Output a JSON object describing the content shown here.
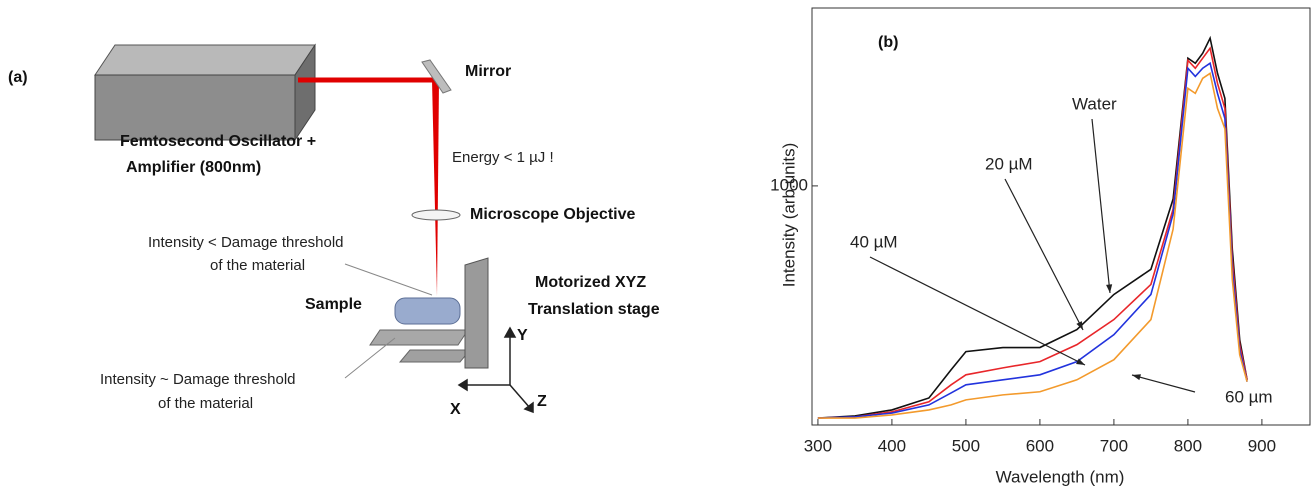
{
  "diagram": {
    "panel_label": "(a)",
    "laser": [
      "Femtosecond Oscillator +",
      "Amplifier (800nm)"
    ],
    "mirror": "Mirror",
    "energy": "Energy < 1 µJ !",
    "objective": "Microscope Objective",
    "surface_note": [
      "Intensity < Damage threshold",
      "of the material"
    ],
    "sample": "Sample",
    "stage": [
      "Motorized XYZ",
      "Translation stage"
    ],
    "bulk_note": [
      "Intensity ~ Damage threshold",
      "of the material"
    ],
    "axes": [
      "X",
      "Y",
      "Z"
    ]
  },
  "chart_data": {
    "type": "line",
    "panel_label": "(b)",
    "x_label": "Wavelength (nm)",
    "y_label": "Intensity (arb.units)",
    "x": [
      300,
      350,
      400,
      450,
      480,
      500,
      550,
      600,
      650,
      700,
      750,
      780,
      800,
      810,
      820,
      830,
      840,
      850,
      860,
      870,
      880
    ],
    "series": [
      {
        "name": "Water",
        "color": "#111111",
        "values": [
          29,
          38,
          63,
          113,
          231,
          307,
          324,
          324,
          399,
          546,
          651,
          945,
          1534,
          1513,
          1555,
          1618,
          1471,
          1366,
          735,
          357,
          189
        ]
      },
      {
        "name": "20 µM",
        "color": "#e8262a",
        "values": [
          29,
          34,
          55,
          97,
          168,
          210,
          239,
          265,
          336,
          441,
          588,
          903,
          1525,
          1492,
          1534,
          1576,
          1429,
          1324,
          693,
          336,
          189
        ]
      },
      {
        "name": "40 µM",
        "color": "#2233dd",
        "values": [
          29,
          34,
          50,
          84,
          134,
          168,
          189,
          210,
          265,
          378,
          546,
          882,
          1492,
          1458,
          1492,
          1513,
          1387,
          1282,
          651,
          315,
          181
        ]
      },
      {
        "name": "60 µm",
        "color": "#f39a2c",
        "values": [
          29,
          29,
          42,
          63,
          84,
          105,
          126,
          139,
          189,
          273,
          441,
          819,
          1408,
          1387,
          1450,
          1471,
          1324,
          1239,
          609,
          294,
          181
        ]
      }
    ],
    "xlim": [
      292,
      965
    ],
    "ylim": [
      0,
      1744
    ],
    "xticks": [
      300,
      400,
      500,
      600,
      700,
      800,
      900
    ],
    "yticks": [
      1000
    ]
  }
}
